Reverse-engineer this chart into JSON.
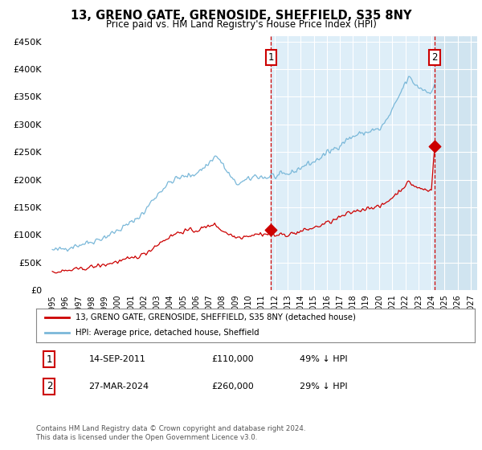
{
  "title": "13, GRENO GATE, GRENOSIDE, SHEFFIELD, S35 8NY",
  "subtitle": "Price paid vs. HM Land Registry's House Price Index (HPI)",
  "ylim": [
    0,
    460000
  ],
  "yticks": [
    0,
    50000,
    100000,
    150000,
    200000,
    250000,
    300000,
    350000,
    400000,
    450000
  ],
  "ytick_labels": [
    "£0",
    "£50K",
    "£100K",
    "£150K",
    "£200K",
    "£250K",
    "£300K",
    "£350K",
    "£400K",
    "£450K"
  ],
  "xtick_years": [
    "1995",
    "1996",
    "1997",
    "1998",
    "1999",
    "2000",
    "2001",
    "2002",
    "2003",
    "2004",
    "2005",
    "2006",
    "2007",
    "2008",
    "2009",
    "2010",
    "2011",
    "2012",
    "2013",
    "2014",
    "2015",
    "2016",
    "2017",
    "2018",
    "2019",
    "2020",
    "2021",
    "2022",
    "2023",
    "2024",
    "2025",
    "2026",
    "2027"
  ],
  "transaction1_x": 2011.72,
  "transaction1_y": 110000,
  "transaction1_label": "1",
  "transaction2_x": 2024.24,
  "transaction2_y": 260000,
  "transaction2_label": "2",
  "shade_start": 2011.72,
  "hatch_start": 2024.3,
  "xlim_start": 1994.5,
  "xlim_end": 2027.5,
  "hpi_color": "#7ab8d9",
  "price_color": "#cc0000",
  "bg_color": "#deeef8",
  "hatch_color": "#b8cdd8",
  "shade_color": "#deeef8",
  "legend_label1": "13, GRENO GATE, GRENOSIDE, SHEFFIELD, S35 8NY (detached house)",
  "legend_label2": "HPI: Average price, detached house, Sheffield",
  "annotation1": "14-SEP-2011",
  "annotation1_price": "£110,000",
  "annotation1_hpi": "49% ↓ HPI",
  "annotation2": "27-MAR-2024",
  "annotation2_price": "£260,000",
  "annotation2_hpi": "29% ↓ HPI",
  "footer": "Contains HM Land Registry data © Crown copyright and database right 2024.\nThis data is licensed under the Open Government Licence v3.0."
}
